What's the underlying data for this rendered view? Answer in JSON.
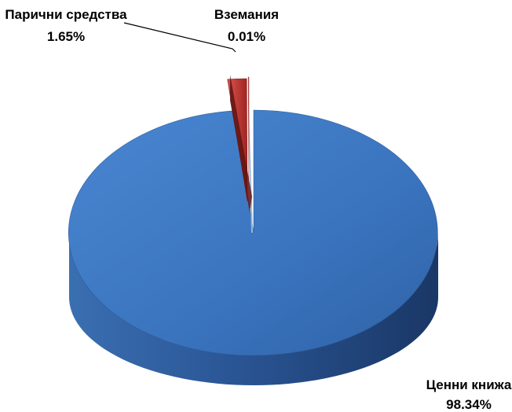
{
  "chart_data": {
    "type": "pie",
    "three_d": true,
    "exploded": true,
    "legend": "none",
    "slices": [
      {
        "label": "Ценни книжа",
        "value": 98.34,
        "value_label": "98.34%",
        "color": "#3a78c6"
      },
      {
        "label": "Парични средства",
        "value": 1.65,
        "value_label": "1.65%",
        "color": "#c63a38"
      },
      {
        "label": "Вземания",
        "value": 0.01,
        "value_label": "0.01%",
        "color": "#c63a38"
      }
    ]
  }
}
